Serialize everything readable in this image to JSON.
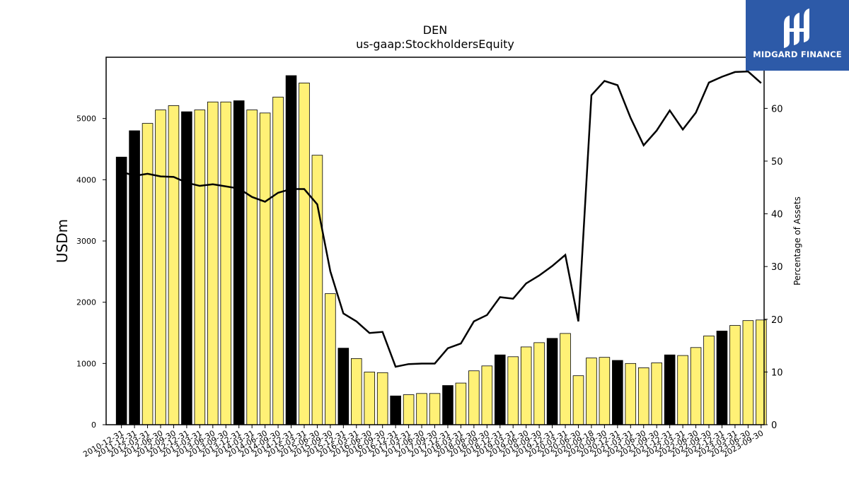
{
  "logo": {
    "text": "MIDGARD FINANCE",
    "icon": "midgard-logo-icon",
    "color": "#2d5aa8"
  },
  "chart_data": {
    "type": "bar",
    "title": "DEN",
    "subtitle": "us-gaap:StockholdersEquity",
    "ylabel": "USDm",
    "y2label": "Percentage of Assets",
    "ylim": [
      0,
      6000
    ],
    "yticks": [
      0,
      1000,
      2000,
      3000,
      4000,
      5000
    ],
    "y2lim": [
      0,
      69.7
    ],
    "y2ticks": [
      0,
      10,
      20,
      30,
      40,
      50,
      60
    ],
    "grid": false,
    "colors": {
      "annual": "#000000",
      "quarterly": "#fff176",
      "line": "#000000"
    },
    "categories": [
      "2010-12-31",
      "2011-12-31",
      "2012-03-31",
      "2012-06-30",
      "2012-09-30",
      "2012-12-31",
      "2013-03-31",
      "2013-06-30",
      "2013-09-30",
      "2013-12-31",
      "2014-03-31",
      "2014-06-30",
      "2014-09-30",
      "2014-12-31",
      "2015-03-31",
      "2015-06-30",
      "2015-09-30",
      "2015-12-31",
      "2016-03-31",
      "2016-06-30",
      "2016-09-30",
      "2016-12-31",
      "2017-03-31",
      "2017-06-30",
      "2017-09-30",
      "2017-12-31",
      "2018-03-31",
      "2018-06-30",
      "2018-09-30",
      "2018-12-31",
      "2019-03-31",
      "2019-06-30",
      "2019-09-30",
      "2019-12-31",
      "2020-03-31",
      "2020-06-30",
      "2020-09-18",
      "2020-09-30",
      "2020-12-31",
      "2021-03-31",
      "2021-06-30",
      "2021-09-30",
      "2021-12-31",
      "2022-03-31",
      "2022-06-30",
      "2022-09-30",
      "2022-12-31",
      "2023-03-31",
      "2023-06-30",
      "2023-09-30"
    ],
    "series": [
      {
        "type": "bar",
        "values": [
          4370,
          4800,
          4920,
          5140,
          5210,
          5110,
          5140,
          5270,
          5270,
          5290,
          5140,
          5090,
          5350,
          5700,
          5580,
          4400,
          2140,
          1250,
          1080,
          860,
          850,
          470,
          490,
          510,
          510,
          640,
          680,
          880,
          960,
          1140,
          1110,
          1270,
          1340,
          1410,
          1490,
          800,
          1090,
          1100,
          1050,
          1000,
          930,
          1010,
          1140,
          1130,
          1260,
          1450,
          1530,
          1620,
          1700,
          1710
        ],
        "annual": [
          true,
          true,
          false,
          false,
          false,
          true,
          false,
          false,
          false,
          true,
          false,
          false,
          false,
          true,
          false,
          false,
          false,
          true,
          false,
          false,
          false,
          true,
          false,
          false,
          false,
          true,
          false,
          false,
          false,
          true,
          false,
          false,
          false,
          true,
          false,
          false,
          false,
          false,
          true,
          false,
          false,
          false,
          true,
          false,
          false,
          false,
          true,
          false,
          false,
          false
        ]
      },
      {
        "type": "line",
        "axis": "right",
        "values": [
          48.0,
          47.2,
          47.6,
          47.1,
          47.0,
          45.9,
          45.3,
          45.6,
          45.2,
          44.8,
          43.2,
          42.3,
          44.0,
          44.7,
          44.7,
          41.8,
          29.1,
          21.1,
          19.6,
          17.4,
          17.6,
          11.0,
          11.5,
          11.6,
          11.6,
          14.5,
          15.4,
          19.6,
          20.8,
          24.2,
          23.9,
          26.8,
          28.3,
          30.1,
          32.2,
          19.6,
          62.5,
          65.2,
          64.4,
          58.2,
          53.0,
          55.8,
          59.6,
          56.0,
          59.2,
          64.9,
          66.0,
          66.9,
          67.0,
          64.8
        ]
      }
    ]
  }
}
